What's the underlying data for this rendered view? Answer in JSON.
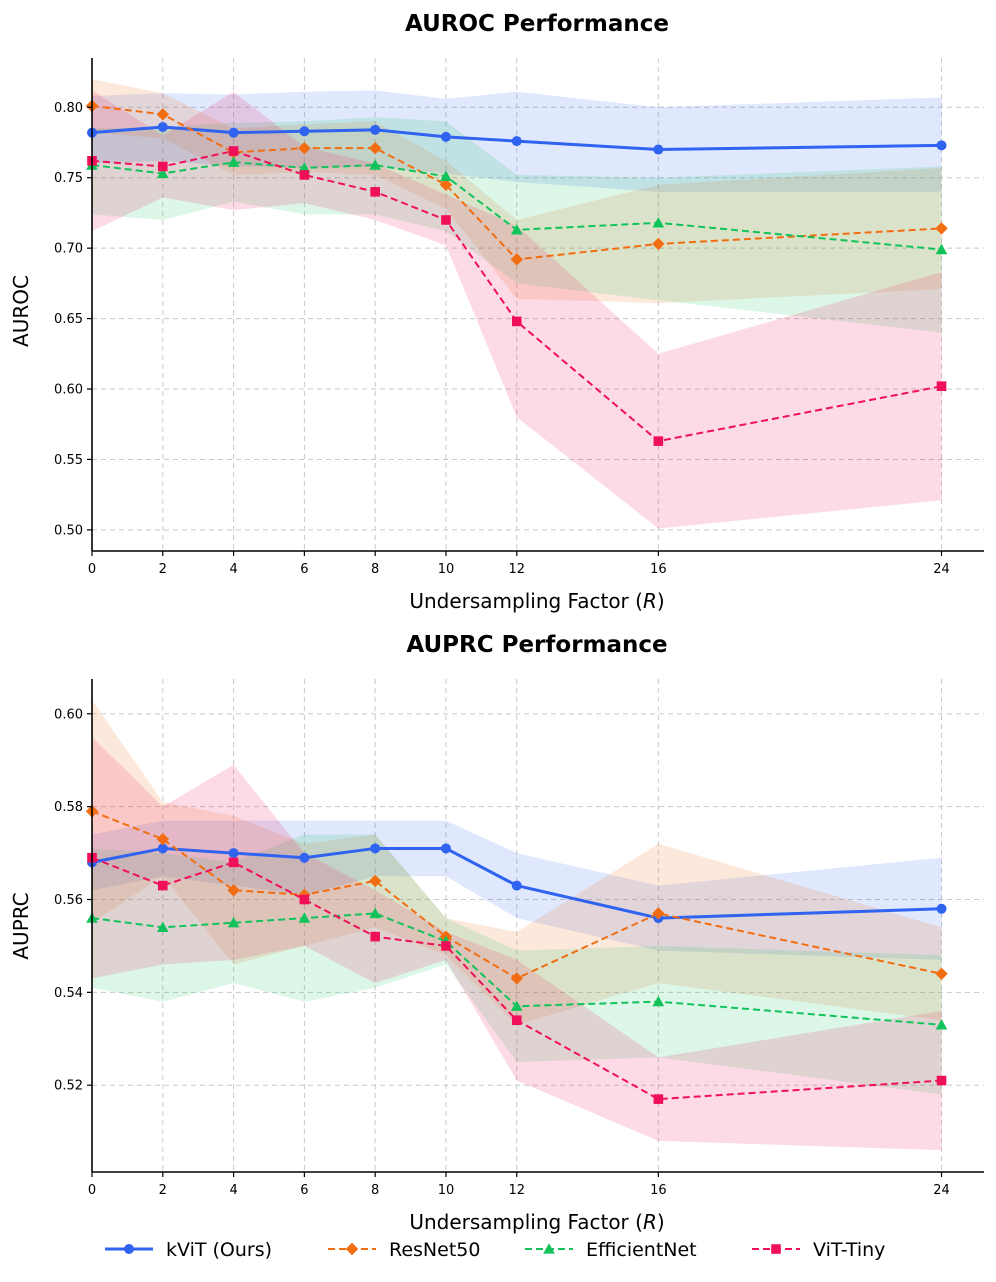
{
  "chart_data": [
    {
      "type": "line",
      "title": "AUROC Performance",
      "xlabel_main": "Undersampling Factor (",
      "xlabel_var": "R",
      "xlabel_end": ")",
      "ylabel": "AUROC",
      "x": [
        0,
        2,
        4,
        6,
        8,
        10,
        12,
        16,
        24
      ],
      "xticks": [
        "0",
        "2",
        "4",
        "6",
        "8",
        "10",
        "12",
        "16",
        "24"
      ],
      "yticks": [
        0.5,
        0.55,
        0.6,
        0.65,
        0.7,
        0.75,
        0.8
      ],
      "ytick_labels": [
        "0.50",
        "0.55",
        "0.60",
        "0.65",
        "0.70",
        "0.75",
        "0.80"
      ],
      "ylim": [
        0.485,
        0.835
      ],
      "xlim": [
        0,
        25.2
      ],
      "grid": true,
      "series": [
        {
          "name": "kViT (Ours)",
          "key": "kvit",
          "values": [
            0.782,
            0.786,
            0.782,
            0.783,
            0.784,
            0.779,
            0.776,
            0.77,
            0.773
          ],
          "upper": [
            0.808,
            0.81,
            0.809,
            0.811,
            0.812,
            0.806,
            0.811,
            0.8,
            0.807
          ],
          "lower": [
            0.76,
            0.762,
            0.758,
            0.757,
            0.758,
            0.753,
            0.747,
            0.74,
            0.74
          ]
        },
        {
          "name": "ResNet50",
          "key": "resnet",
          "values": [
            0.801,
            0.795,
            0.768,
            0.771,
            0.771,
            0.745,
            0.692,
            0.703,
            0.714
          ],
          "upper": [
            0.82,
            0.81,
            0.785,
            0.788,
            0.79,
            0.762,
            0.72,
            0.745,
            0.757
          ],
          "lower": [
            0.782,
            0.778,
            0.752,
            0.754,
            0.752,
            0.728,
            0.664,
            0.661,
            0.671
          ]
        },
        {
          "name": "EfficientNet",
          "key": "effnet",
          "values": [
            0.759,
            0.753,
            0.761,
            0.757,
            0.759,
            0.751,
            0.713,
            0.718,
            0.699
          ],
          "upper": [
            0.785,
            0.786,
            0.789,
            0.79,
            0.793,
            0.79,
            0.752,
            0.75,
            0.758
          ],
          "lower": [
            0.724,
            0.72,
            0.733,
            0.724,
            0.724,
            0.712,
            0.675,
            0.663,
            0.64
          ]
        },
        {
          "name": "ViT-Tiny",
          "key": "vit",
          "values": [
            0.762,
            0.758,
            0.769,
            0.752,
            0.74,
            0.72,
            0.648,
            0.563,
            0.602
          ],
          "upper": [
            0.812,
            0.78,
            0.811,
            0.772,
            0.76,
            0.738,
            0.716,
            0.625,
            0.683
          ],
          "lower": [
            0.712,
            0.736,
            0.727,
            0.732,
            0.72,
            0.702,
            0.58,
            0.501,
            0.521
          ]
        }
      ]
    },
    {
      "type": "line",
      "title": "AUPRC Performance",
      "xlabel_main": "Undersampling Factor (",
      "xlabel_var": "R",
      "xlabel_end": ")",
      "ylabel": "AUPRC",
      "x": [
        0,
        2,
        4,
        6,
        8,
        10,
        12,
        16,
        24
      ],
      "xticks": [
        "0",
        "2",
        "4",
        "6",
        "8",
        "10",
        "12",
        "16",
        "24"
      ],
      "yticks": [
        0.52,
        0.54,
        0.56,
        0.58,
        0.6
      ],
      "ytick_labels": [
        "0.52",
        "0.54",
        "0.56",
        "0.58",
        "0.60"
      ],
      "ylim": [
        0.5013,
        0.6075
      ],
      "xlim": [
        0,
        25.2
      ],
      "grid": true,
      "series": [
        {
          "name": "kViT (Ours)",
          "key": "kvit",
          "values": [
            0.568,
            0.571,
            0.57,
            0.569,
            0.571,
            0.571,
            0.563,
            0.556,
            0.558
          ],
          "upper": [
            0.574,
            0.577,
            0.577,
            0.577,
            0.577,
            0.577,
            0.57,
            0.563,
            0.569
          ],
          "lower": [
            0.562,
            0.565,
            0.563,
            0.561,
            0.565,
            0.565,
            0.556,
            0.549,
            0.547
          ]
        },
        {
          "name": "ResNet50",
          "key": "resnet",
          "values": [
            0.579,
            0.573,
            0.562,
            0.561,
            0.564,
            0.552,
            0.543,
            0.557,
            0.544
          ],
          "upper": [
            0.603,
            0.581,
            0.578,
            0.572,
            0.574,
            0.556,
            0.553,
            0.572,
            0.554
          ],
          "lower": [
            0.555,
            0.565,
            0.546,
            0.55,
            0.554,
            0.548,
            0.533,
            0.542,
            0.534
          ]
        },
        {
          "name": "EfficientNet",
          "key": "effnet",
          "values": [
            0.556,
            0.554,
            0.555,
            0.556,
            0.557,
            0.551,
            0.537,
            0.538,
            0.533
          ],
          "upper": [
            0.571,
            0.57,
            0.568,
            0.574,
            0.574,
            0.556,
            0.549,
            0.55,
            0.548
          ],
          "lower": [
            0.541,
            0.538,
            0.542,
            0.538,
            0.541,
            0.546,
            0.525,
            0.526,
            0.518
          ]
        },
        {
          "name": "ViT-Tiny",
          "key": "vit",
          "values": [
            0.569,
            0.563,
            0.568,
            0.56,
            0.552,
            0.55,
            0.534,
            0.517,
            0.521
          ],
          "upper": [
            0.595,
            0.58,
            0.589,
            0.57,
            0.562,
            0.553,
            0.547,
            0.526,
            0.536
          ],
          "lower": [
            0.543,
            0.546,
            0.547,
            0.55,
            0.542,
            0.547,
            0.521,
            0.508,
            0.506
          ]
        }
      ]
    }
  ],
  "legend": [
    {
      "key": "kvit",
      "label": "kViT (Ours)"
    },
    {
      "key": "resnet",
      "label": "ResNet50"
    },
    {
      "key": "effnet",
      "label": "EfficientNet"
    },
    {
      "key": "vit",
      "label": "ViT-Tiny"
    }
  ],
  "colors": {
    "kvit": "#2f63f0",
    "resnet": "#f26d12",
    "effnet": "#12c35c",
    "vit": "#f0105a"
  },
  "markers": {
    "kvit": "circle",
    "resnet": "diamond",
    "effnet": "triangle",
    "vit": "square"
  }
}
